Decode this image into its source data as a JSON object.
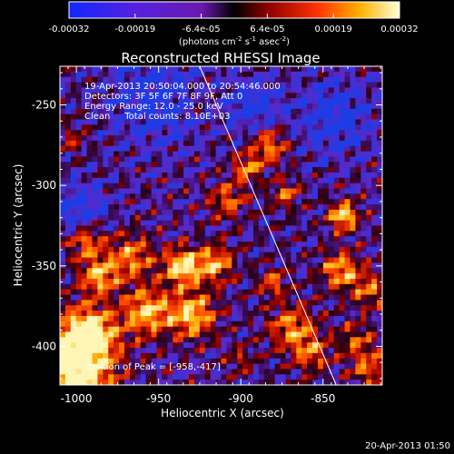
{
  "chart_data": {
    "type": "heatmap",
    "title": "Reconstructed RHESSI Image",
    "xlabel": "Heliocentric X (arcsec)",
    "ylabel": "Heliocentric Y (arcsec)",
    "xlim": [
      -1010,
      -814
    ],
    "ylim": [
      -424,
      -226
    ],
    "x_ticks": [
      "-1000",
      "-950",
      "-900",
      "-850"
    ],
    "x_tick_values": [
      -1000,
      -950,
      -900,
      -850
    ],
    "y_ticks": [
      "-250",
      "-300",
      "-350",
      "-400"
    ],
    "y_tick_values": [
      -250,
      -300,
      -350,
      -400
    ],
    "colorbar": {
      "tick_labels": [
        "-0.00032",
        "-0.00019",
        "-6.4e-05",
        "6.4e-05",
        "0.00019",
        "0.00032"
      ],
      "unit_text": "(photons cm",
      "unit_sup1": "-2",
      "unit_mid": " s",
      "unit_sup2": "-1",
      "unit_end": " asec",
      "unit_sup3": "-2",
      "unit_close": ")",
      "range": [
        -0.00032,
        0.00032
      ]
    },
    "annotations": [
      "19-Apr-2013 20:50:04.000 to 20:54:46.000",
      "Detectors: 3F 5F 6F 7F 8F 9F, Att 0",
      "Energy Range: 12.0 - 25.0 keV",
      "Clean     Total counts: 8.10E+03"
    ],
    "peak_label": "Position of Peak = [-958,-417]",
    "peak": [
      -958,
      -417
    ],
    "limb_line": [
      [
        -925,
        -226
      ],
      [
        -842,
        -424
      ]
    ],
    "footer": "20-Apr-2013 01:50"
  }
}
